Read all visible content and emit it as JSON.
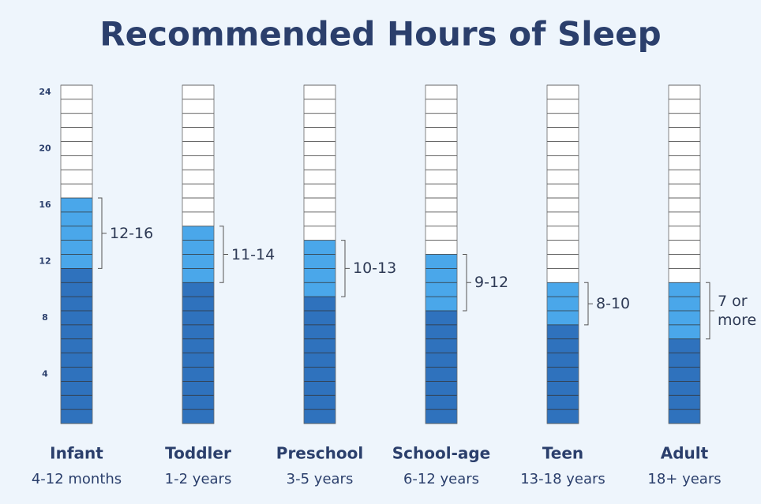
{
  "chart_data": {
    "type": "stacked_bar",
    "title": "Recommended Hours of Sleep",
    "categories": [
      "Infant",
      "Toddler",
      "Preschool",
      "School-age",
      "Teen",
      "Adult"
    ],
    "age_ranges": [
      "4-12 months",
      "1-2 years",
      "3-5 years",
      "6-12 years",
      "13-18 years",
      "18+ years"
    ],
    "series": [
      {
        "color": "#2f72bd",
        "values": [
          11,
          10,
          9,
          8,
          7,
          6
        ]
      },
      {
        "color": "#4aa7ea",
        "values": [
          5,
          4,
          4,
          4,
          3,
          4
        ]
      }
    ],
    "range_labels": [
      "12-16",
      "11-14",
      "10-13",
      "9-12",
      "8-10",
      "7 or more"
    ],
    "ylim": [
      0,
      24
    ],
    "yticks": [
      4,
      8,
      12,
      16,
      20,
      24
    ]
  }
}
